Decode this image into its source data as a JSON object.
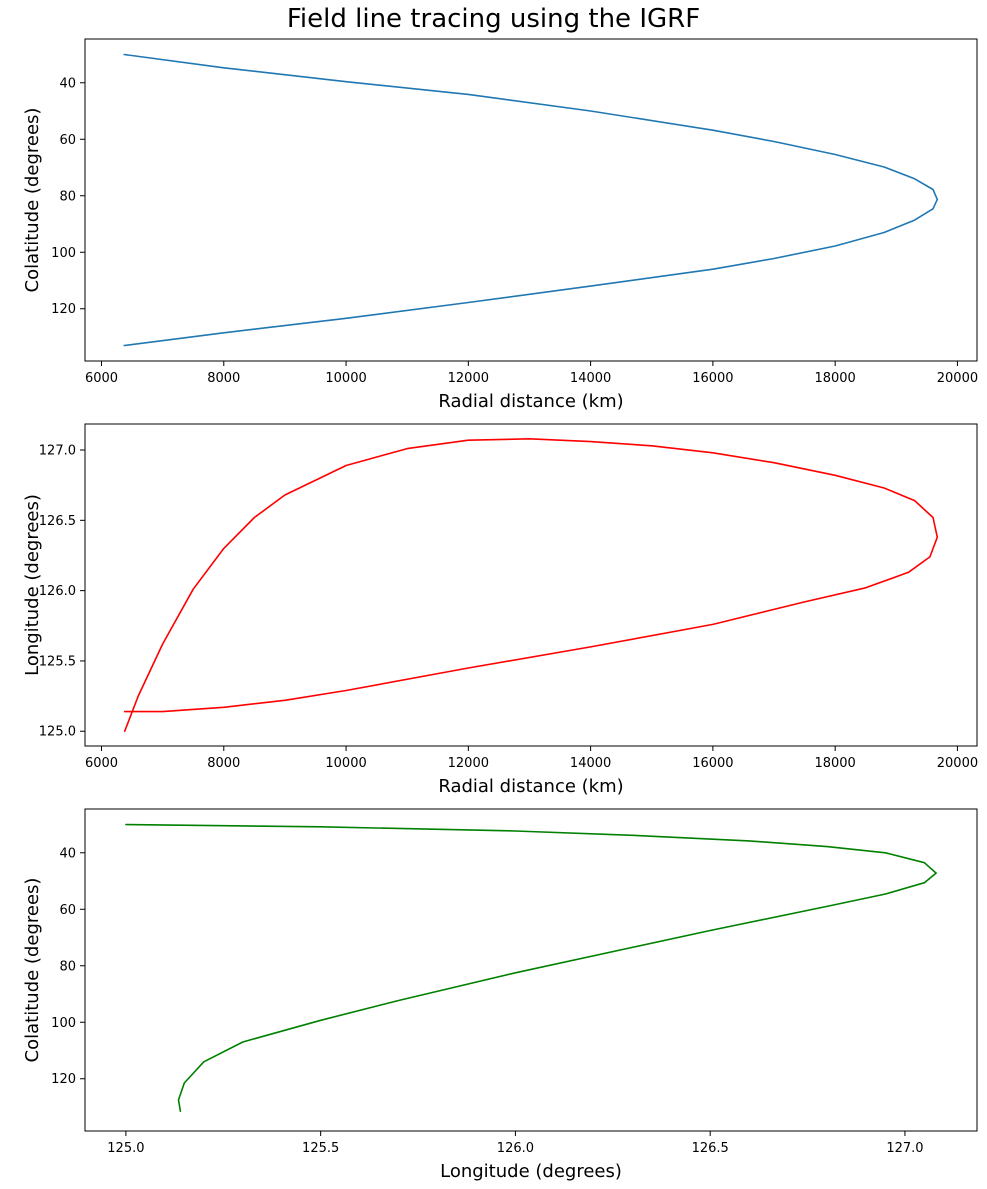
{
  "figure": {
    "title": "Field line tracing using the IGRF"
  },
  "chart_data": [
    {
      "type": "line",
      "xlabel": "Radial distance (km)",
      "ylabel": "Colatitude (degrees)",
      "xlim": [
        5730,
        20320
      ],
      "ylim": [
        24.5,
        138.5
      ],
      "y_inverted": true,
      "xticks": [
        6000,
        8000,
        10000,
        12000,
        14000,
        16000,
        18000,
        20000
      ],
      "yticks": [
        40,
        60,
        80,
        100,
        120
      ],
      "grid": false,
      "series": [
        {
          "color": "#1f77b4",
          "x": [
            6371,
            8000,
            10000,
            12000,
            14000,
            16000,
            17000,
            18000,
            18800,
            19300,
            19600,
            19670,
            19600,
            19300,
            18800,
            18000,
            17000,
            16000,
            14000,
            12000,
            10000,
            8000,
            6371
          ],
          "y": [
            30,
            34.7,
            39.6,
            44.1,
            50.0,
            56.8,
            60.8,
            65.4,
            69.8,
            74.0,
            77.8,
            81.3,
            84.6,
            88.6,
            93.0,
            97.8,
            102.2,
            106.0,
            112.0,
            117.8,
            123.4,
            128.5,
            133.0
          ]
        }
      ]
    },
    {
      "type": "line",
      "xlabel": "Radial distance (km)",
      "ylabel": "Longitude (degrees)",
      "xlim": [
        5730,
        20320
      ],
      "ylim": [
        124.895,
        127.185
      ],
      "y_inverted": false,
      "xticks": [
        6000,
        8000,
        10000,
        12000,
        14000,
        16000,
        18000,
        20000
      ],
      "yticks": [
        125.0,
        125.5,
        126.0,
        126.5,
        127.0
      ],
      "ytick_labels": [
        "125.0",
        "125.5",
        "126.0",
        "126.5",
        "127.0"
      ],
      "grid": false,
      "series": [
        {
          "color": "#ff0000",
          "x": [
            6380,
            6600,
            7000,
            7500,
            8000,
            8500,
            9000,
            10000,
            11000,
            12000,
            13000,
            14000,
            15000,
            16000,
            17000,
            18000,
            18800,
            19300,
            19600,
            19670,
            19550,
            19200,
            18500,
            17500,
            16000,
            14000,
            12000,
            10000,
            9000,
            8000,
            7000,
            6380
          ],
          "y": [
            125.0,
            125.25,
            125.62,
            126.01,
            126.3,
            126.52,
            126.68,
            126.89,
            127.01,
            127.07,
            127.08,
            127.06,
            127.03,
            126.98,
            126.91,
            126.82,
            126.73,
            126.64,
            126.52,
            126.38,
            126.24,
            126.13,
            126.02,
            125.92,
            125.76,
            125.6,
            125.45,
            125.29,
            125.22,
            125.17,
            125.14,
            125.14
          ]
        }
      ]
    },
    {
      "type": "line",
      "xlabel": "Longitude (degrees)",
      "ylabel": "Colatitude (degrees)",
      "xlim": [
        124.895,
        127.185
      ],
      "ylim": [
        24.5,
        138.5
      ],
      "y_inverted": true,
      "xticks": [
        125.0,
        125.5,
        126.0,
        126.5,
        127.0
      ],
      "xtick_labels": [
        "125.0",
        "125.5",
        "126.0",
        "126.5",
        "127.0"
      ],
      "yticks": [
        40,
        60,
        80,
        100,
        120
      ],
      "grid": false,
      "series": [
        {
          "color": "#008000",
          "x": [
            125.0,
            125.5,
            126.0,
            126.3,
            126.6,
            126.8,
            126.95,
            127.05,
            127.08,
            127.05,
            126.95,
            126.8,
            126.5,
            126.3,
            126.0,
            125.7,
            125.5,
            125.3,
            125.2,
            125.15,
            125.135,
            125.14
          ],
          "y": [
            30,
            30.8,
            32.3,
            33.8,
            35.8,
            37.8,
            40.0,
            43.5,
            47.2,
            50.6,
            54.6,
            59.0,
            67.5,
            73.5,
            82.5,
            92.3,
            99.3,
            107.0,
            114.0,
            121.5,
            127.5,
            131.5
          ]
        }
      ]
    }
  ]
}
